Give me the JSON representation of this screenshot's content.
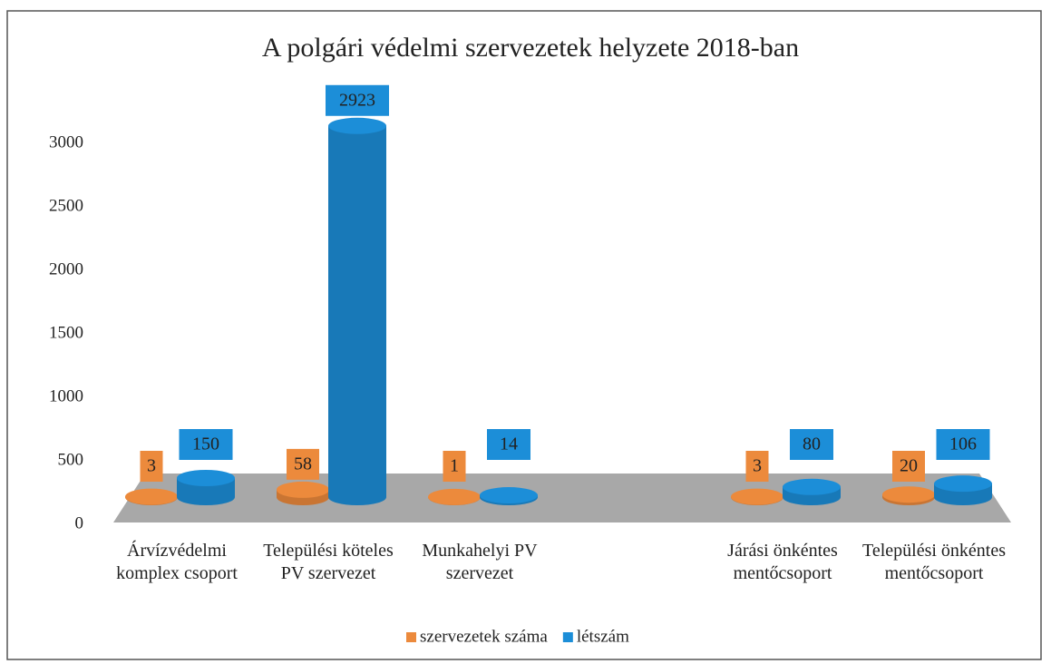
{
  "chart_data": {
    "type": "bar3d",
    "title": "A polgári védelmi szervezetek helyzete 2018-ban",
    "categories": [
      "Árvízvédelmi komplex csoport",
      "Települési köteles PV szervezet",
      "Munkahelyi PV szervezet",
      null,
      "Járási önkéntes mentőcsoport",
      "Települési önkéntes mentőcsoport"
    ],
    "series": [
      {
        "name": "szervezetek száma",
        "color": "#ec8a3c",
        "values": [
          3,
          58,
          1,
          null,
          3,
          20
        ]
      },
      {
        "name": "létszám",
        "color": "#1c8ed8",
        "values": [
          150,
          2923,
          14,
          null,
          80,
          106
        ]
      }
    ],
    "ylim": [
      0,
      3000
    ],
    "yticks": [
      0,
      500,
      1000,
      1500,
      2000,
      2500,
      3000
    ],
    "legend": "bottom"
  }
}
